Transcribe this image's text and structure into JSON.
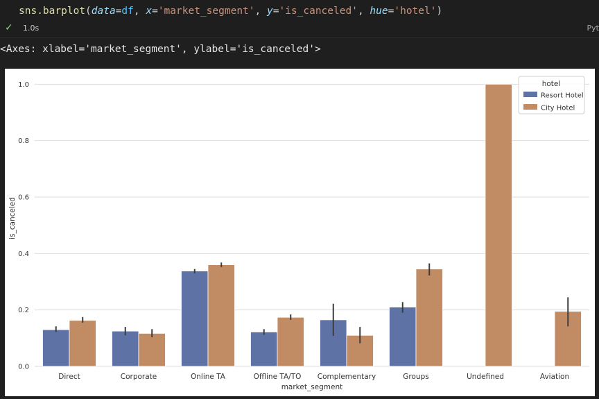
{
  "code": {
    "fn": "sns.barplot",
    "kw_data": "data",
    "var_df": "df",
    "kw_x": "x",
    "str_x": "'market_segment'",
    "kw_y": "y",
    "str_y": "'is_canceled'",
    "kw_hue": "hue",
    "str_hue": "'hotel'"
  },
  "status": {
    "time": "1.0s",
    "lang": "Pyt"
  },
  "output": {
    "text": "<Axes: xlabel='market_segment', ylabel='is_canceled'>"
  },
  "colors": {
    "resort": "#5e72a6",
    "city": "#c18b63"
  },
  "chart_data": {
    "type": "bar",
    "xlabel": "market_segment",
    "ylabel": "is_canceled",
    "ylim": [
      0,
      1.05
    ],
    "yticks": [
      "0.0",
      "0.2",
      "0.4",
      "0.6",
      "0.8",
      "1.0"
    ],
    "grid": true,
    "legend": {
      "title": "hotel",
      "position": "top-right"
    },
    "categories": [
      "Direct",
      "Corporate",
      "Online TA",
      "Offline TA/TO",
      "Complementary",
      "Groups",
      "Undefined",
      "Aviation"
    ],
    "series": [
      {
        "name": "Resort Hotel",
        "values": [
          0.13,
          0.125,
          0.338,
          0.122,
          0.165,
          0.21,
          null,
          null
        ],
        "err_low": [
          0.122,
          0.11,
          0.33,
          0.112,
          0.108,
          0.19,
          null,
          null
        ],
        "err_high": [
          0.142,
          0.14,
          0.345,
          0.132,
          0.222,
          0.228,
          null,
          null
        ]
      },
      {
        "name": "City Hotel",
        "values": [
          0.163,
          0.117,
          0.36,
          0.174,
          0.11,
          0.345,
          1.0,
          0.195
        ],
        "err_low": [
          0.155,
          0.103,
          0.352,
          0.165,
          0.082,
          0.322,
          1.0,
          0.142
        ],
        "err_high": [
          0.175,
          0.132,
          0.368,
          0.184,
          0.14,
          0.365,
          1.0,
          0.245
        ]
      }
    ]
  }
}
